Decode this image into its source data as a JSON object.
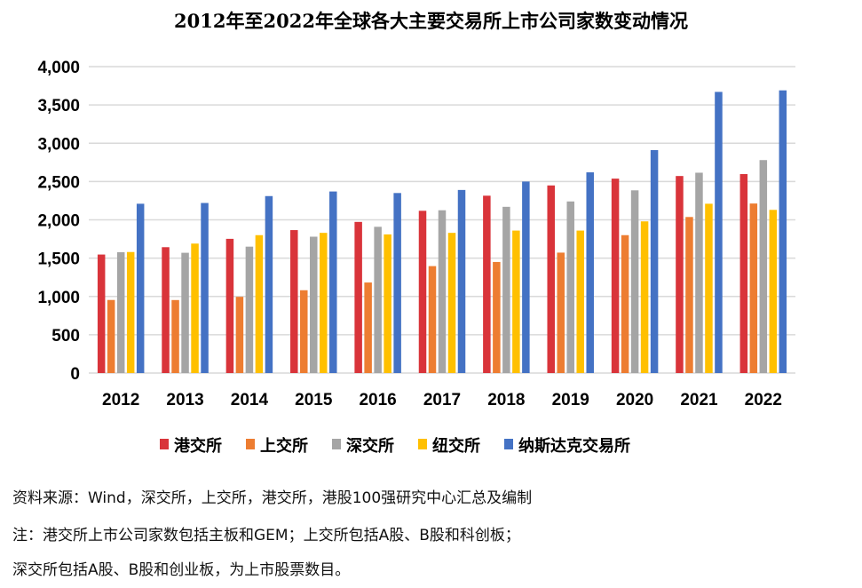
{
  "chart_data": {
    "type": "bar",
    "title": "2012年至2022年全球各大主要交易所上市公司家数变动情况",
    "categories": [
      "2012",
      "2013",
      "2014",
      "2015",
      "2016",
      "2017",
      "2018",
      "2019",
      "2020",
      "2021",
      "2022"
    ],
    "ylim": [
      0,
      4000
    ],
    "yticks": [
      "0",
      "500",
      "1,000",
      "1,500",
      "2,000",
      "2,500",
      "3,000",
      "3,500",
      "4,000"
    ],
    "ytick_values": [
      0,
      500,
      1000,
      1500,
      2000,
      2500,
      3000,
      3500,
      4000
    ],
    "grid": true,
    "legend": "bottom",
    "series": [
      {
        "name": "港交所",
        "color": "#d9343a",
        "values": [
          1547,
          1643,
          1752,
          1866,
          1973,
          2118,
          2315,
          2449,
          2538,
          2572,
          2597
        ]
      },
      {
        "name": "上交所",
        "color": "#ed7d31",
        "values": [
          954,
          953,
          995,
          1081,
          1182,
          1396,
          1450,
          1572,
          1800,
          2037,
          2213
        ]
      },
      {
        "name": "深交所",
        "color": "#a5a5a5",
        "values": [
          1578,
          1570,
          1650,
          1780,
          1909,
          2125,
          2170,
          2240,
          2385,
          2615,
          2780
        ]
      },
      {
        "name": "纽交所",
        "color": "#ffc000",
        "values": [
          1580,
          1690,
          1800,
          1830,
          1810,
          1830,
          1860,
          1860,
          1980,
          2210,
          2130
        ]
      },
      {
        "name": "纳斯达克交易所",
        "color": "#4472c4",
        "values": [
          2210,
          2220,
          2310,
          2370,
          2350,
          2390,
          2500,
          2620,
          2910,
          3670,
          3690
        ]
      }
    ]
  },
  "notes": [
    "资料来源：Wind，深交所，上交所，港交所，港股100强研究中心汇总及编制",
    "注：港交所上市公司家数包括主板和GEM；上交所包括A股、B股和科创板；",
    "深交所包括A股、B股和创业板，为上市股票数目。"
  ]
}
